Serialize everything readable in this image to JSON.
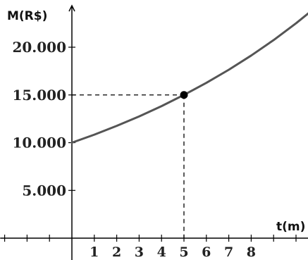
{
  "chart_data": {
    "type": "line",
    "xlabel": "t(m)",
    "ylabel": "M(R$)",
    "x_ticks": [
      1,
      2,
      3,
      4,
      5,
      6,
      7,
      8
    ],
    "y_ticks": [
      5000,
      10000,
      15000,
      20000
    ],
    "y_tick_labels": [
      "5.000",
      "10.000",
      "15.000",
      "20.000"
    ],
    "xlim": [
      -3.2,
      11.0
    ],
    "ylim": [
      0,
      23600
    ],
    "series": [
      {
        "x": [
          0,
          1,
          2,
          3,
          4,
          5,
          6,
          7,
          8,
          9,
          10,
          11
        ],
        "y": [
          10000,
          10845,
          11761,
          12755,
          13832,
          15000,
          16267,
          17642,
          19132,
          20749,
          22500,
          24400
        ]
      }
    ],
    "highlight_point": {
      "x": 5,
      "y": 15000
    },
    "grid": false,
    "colors": {
      "curve": "#555555",
      "axis": "#000000",
      "point": "#000000",
      "guide": "#000000"
    }
  }
}
